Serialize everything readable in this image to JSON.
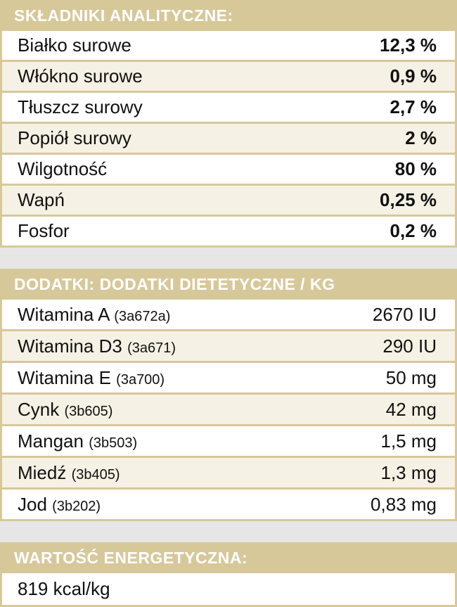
{
  "analytical": {
    "title": "SKŁADNIKI ANALITYCZNE:",
    "rows": [
      {
        "name": "Białko surowe",
        "value": "12,3 %"
      },
      {
        "name": "Włókno surowe",
        "value": "0,9 %"
      },
      {
        "name": "Tłuszcz surowy",
        "value": "2,7 %"
      },
      {
        "name": "Popiół surowy",
        "value": "2 %"
      },
      {
        "name": "Wilgotność",
        "value": "80 %"
      },
      {
        "name": "Wapń",
        "value": "0,25 %"
      },
      {
        "name": "Fosfor",
        "value": "0,2 %"
      }
    ]
  },
  "additives": {
    "title": "DODATKI: DODATKI DIETETYCZNE / KG",
    "rows": [
      {
        "name": "Witamina A",
        "code": "(3a672a)",
        "value": "2670 IU"
      },
      {
        "name": "Witamina D3",
        "code": "(3a671)",
        "value": "290 IU"
      },
      {
        "name": "Witamina E",
        "code": "(3a700)",
        "value": "50 mg"
      },
      {
        "name": "Cynk",
        "code": "(3b605)",
        "value": "42 mg"
      },
      {
        "name": "Mangan",
        "code": "(3b503)",
        "value": "1,5 mg"
      },
      {
        "name": "Miedź",
        "code": "(3b405)",
        "value": "1,3 mg"
      },
      {
        "name": "Jod",
        "code": "(3b202)",
        "value": "0,83 mg"
      }
    ]
  },
  "energy": {
    "title": "WARTOŚĆ ENERGETYCZNA:",
    "value": "819 kcal/kg"
  }
}
